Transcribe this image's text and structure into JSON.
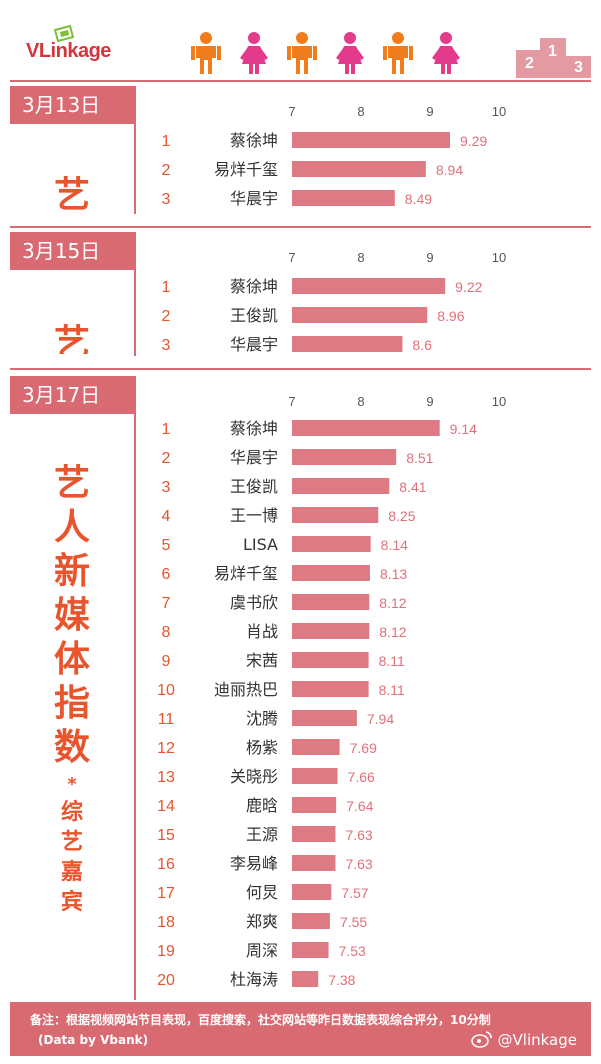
{
  "header": {
    "logo_text": "VLinkage",
    "figure_colors": [
      "#f07c1e",
      "#e43a8c",
      "#f07c1e",
      "#e43a8c",
      "#f07c1e",
      "#e43a8c"
    ]
  },
  "side_title": {
    "main": "艺人新媒体指数",
    "asterisk": "*",
    "sub": "综艺嘉宾"
  },
  "chart_data": [
    {
      "type": "bar",
      "date": "3月13日",
      "ranks": [
        "1",
        "2",
        "3"
      ],
      "categories": [
        "蔡徐坤",
        "易烊千玺",
        "华晨宇"
      ],
      "values": [
        9.29,
        8.94,
        8.49
      ],
      "value_labels": [
        "9.29",
        "8.94",
        "8.49"
      ],
      "xlim": [
        7,
        10
      ],
      "ticks": [
        "7",
        "8",
        "9",
        "10"
      ]
    },
    {
      "type": "bar",
      "date": "3月15日",
      "ranks": [
        "1",
        "2",
        "3"
      ],
      "categories": [
        "蔡徐坤",
        "王俊凯",
        "华晨宇"
      ],
      "values": [
        9.22,
        8.96,
        8.6
      ],
      "value_labels": [
        "9.22",
        "8.96",
        "8.6"
      ],
      "xlim": [
        7,
        10
      ],
      "ticks": [
        "7",
        "8",
        "9",
        "10"
      ]
    },
    {
      "type": "bar",
      "date": "3月17日",
      "ranks": [
        "1",
        "2",
        "3",
        "4",
        "5",
        "6",
        "7",
        "8",
        "9",
        "10",
        "11",
        "12",
        "13",
        "14",
        "15",
        "16",
        "17",
        "18",
        "19",
        "20"
      ],
      "categories": [
        "蔡徐坤",
        "华晨宇",
        "王俊凯",
        "王一博",
        "LISA",
        "易烊千玺",
        "虞书欣",
        "肖战",
        "宋茜",
        "迪丽热巴",
        "沈腾",
        "杨紫",
        "关晓彤",
        "鹿晗",
        "王源",
        "李易峰",
        "何炅",
        "郑爽",
        "周深",
        "杜海涛"
      ],
      "values": [
        9.14,
        8.51,
        8.41,
        8.25,
        8.14,
        8.13,
        8.12,
        8.12,
        8.11,
        8.11,
        7.94,
        7.69,
        7.66,
        7.64,
        7.63,
        7.63,
        7.57,
        7.55,
        7.53,
        7.38
      ],
      "value_labels": [
        "9.14",
        "8.51",
        "8.41",
        "8.25",
        "8.14",
        "8.13",
        "8.12",
        "8.12",
        "8.11",
        "8.11",
        "7.94",
        "7.69",
        "7.66",
        "7.64",
        "7.63",
        "7.63",
        "7.57",
        "7.55",
        "7.53",
        "7.38"
      ],
      "xlim": [
        7,
        10
      ],
      "ticks": [
        "7",
        "8",
        "9",
        "10"
      ]
    }
  ],
  "colors": {
    "accent": "#d96a72",
    "bar": "#dd7a84",
    "rank": "#e8542c",
    "value": "#e0707a",
    "title": "#e8542c"
  },
  "footer": {
    "note": "备注：根据视频网站节目表现，百度搜索，社交网站等昨日数据表现综合评分，10分制",
    "data_by": "(Data by Vbank)",
    "weibo": "@Vlinkage"
  }
}
